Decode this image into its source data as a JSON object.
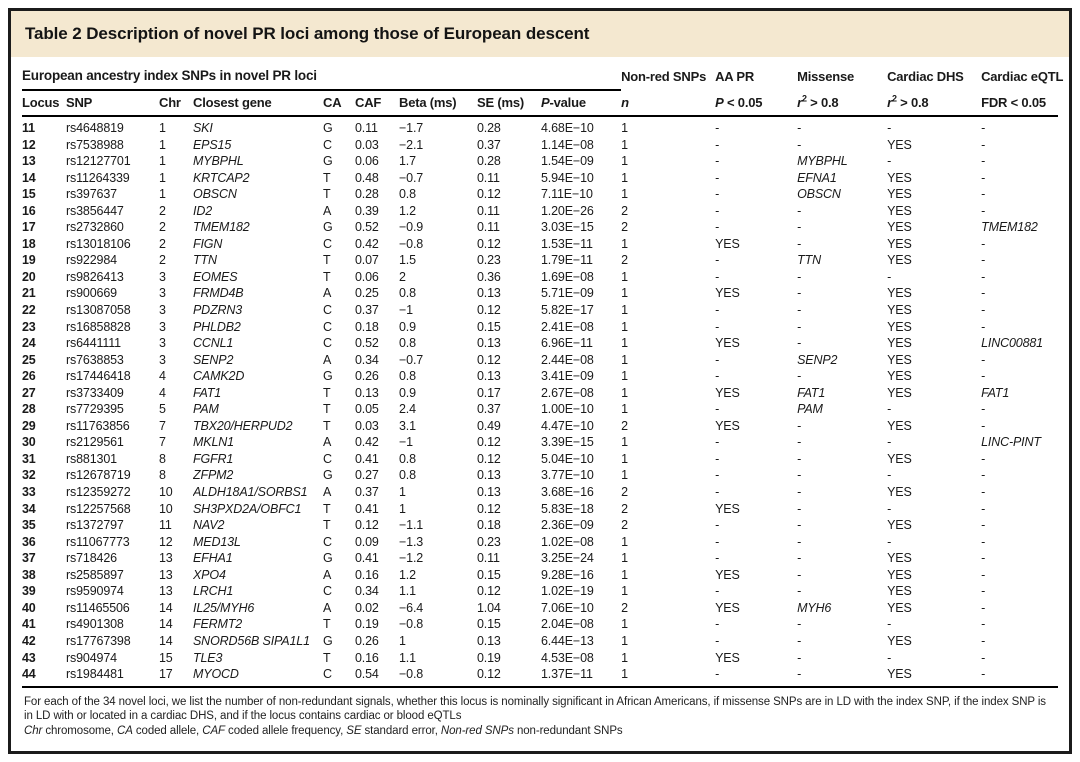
{
  "title": "Table 2 Description of novel PR loci among those of European descent",
  "section": {
    "left_group_header": "European ancestry index SNPs in novel PR loci"
  },
  "table": {
    "groups": [
      "Non-red SNPs",
      "AA PR",
      "Missense",
      "Cardiac DHS",
      "Cardiac eQTL"
    ],
    "columns": [
      {
        "id": "locus",
        "label": "Locus"
      },
      {
        "id": "snp",
        "label": "SNP"
      },
      {
        "id": "chr",
        "label": "Chr"
      },
      {
        "id": "gene",
        "label": "Closest gene"
      },
      {
        "id": "ca",
        "label": "CA"
      },
      {
        "id": "caf",
        "label": "CAF"
      },
      {
        "id": "beta",
        "label": "Beta (ms)"
      },
      {
        "id": "se",
        "label": "SE (ms)"
      },
      {
        "id": "pvalue",
        "label": "P-value"
      },
      {
        "id": "n",
        "label": "n"
      },
      {
        "id": "aapr",
        "label": "P < 0.05"
      },
      {
        "id": "missense",
        "label": "r2 > 0.8"
      },
      {
        "id": "dhs",
        "label": "r2 > 0.8"
      },
      {
        "id": "eqtl",
        "label": "FDR < 0.05"
      }
    ],
    "rows": [
      [
        "11",
        "rs4648819",
        "1",
        "SKI",
        "G",
        "0.11",
        "−1.7",
        "0.28",
        "4.68E−10",
        "1",
        "-",
        "-",
        "-",
        "-"
      ],
      [
        "12",
        "rs7538988",
        "1",
        "EPS15",
        "C",
        "0.03",
        "−2.1",
        "0.37",
        "1.14E−08",
        "1",
        "-",
        "-",
        "YES",
        "-"
      ],
      [
        "13",
        "rs12127701",
        "1",
        "MYBPHL",
        "G",
        "0.06",
        "1.7",
        "0.28",
        "1.54E−09",
        "1",
        "-",
        "MYBPHL",
        "-",
        "-"
      ],
      [
        "14",
        "rs11264339",
        "1",
        "KRTCAP2",
        "T",
        "0.48",
        "−0.7",
        "0.11",
        "5.94E−10",
        "1",
        "-",
        "EFNA1",
        "YES",
        "-"
      ],
      [
        "15",
        "rs397637",
        "1",
        "OBSCN",
        "T",
        "0.28",
        "0.8",
        "0.12",
        "7.11E−10",
        "1",
        "-",
        "OBSCN",
        "YES",
        "-"
      ],
      [
        "16",
        "rs3856447",
        "2",
        "ID2",
        "A",
        "0.39",
        "1.2",
        "0.11",
        "1.20E−26",
        "2",
        "-",
        "-",
        "YES",
        "-"
      ],
      [
        "17",
        "rs2732860",
        "2",
        "TMEM182",
        "G",
        "0.52",
        "−0.9",
        "0.11",
        "3.03E−15",
        "2",
        "-",
        "-",
        "YES",
        "TMEM182"
      ],
      [
        "18",
        "rs13018106",
        "2",
        "FIGN",
        "C",
        "0.42",
        "−0.8",
        "0.12",
        "1.53E−11",
        "1",
        "YES",
        "-",
        "YES",
        "-"
      ],
      [
        "19",
        "rs922984",
        "2",
        "TTN",
        "T",
        "0.07",
        "1.5",
        "0.23",
        "1.79E−11",
        "2",
        "-",
        "TTN",
        "YES",
        "-"
      ],
      [
        "20",
        "rs9826413",
        "3",
        "EOMES",
        "T",
        "0.06",
        "2",
        "0.36",
        "1.69E−08",
        "1",
        "-",
        "-",
        "-",
        "-"
      ],
      [
        "21",
        "rs900669",
        "3",
        "FRMD4B",
        "A",
        "0.25",
        "0.8",
        "0.13",
        "5.71E−09",
        "1",
        "YES",
        "-",
        "YES",
        "-"
      ],
      [
        "22",
        "rs13087058",
        "3",
        "PDZRN3",
        "C",
        "0.37",
        "−1",
        "0.12",
        "5.82E−17",
        "1",
        "-",
        "-",
        "YES",
        "-"
      ],
      [
        "23",
        "rs16858828",
        "3",
        "PHLDB2",
        "C",
        "0.18",
        "0.9",
        "0.15",
        "2.41E−08",
        "1",
        "-",
        "-",
        "YES",
        "-"
      ],
      [
        "24",
        "rs6441111",
        "3",
        "CCNL1",
        "C",
        "0.52",
        "0.8",
        "0.13",
        "6.96E−11",
        "1",
        "YES",
        "-",
        "YES",
        "LINC00881"
      ],
      [
        "25",
        "rs7638853",
        "3",
        "SENP2",
        "A",
        "0.34",
        "−0.7",
        "0.12",
        "2.44E−08",
        "1",
        "-",
        "SENP2",
        "YES",
        "-"
      ],
      [
        "26",
        "rs17446418",
        "4",
        "CAMK2D",
        "G",
        "0.26",
        "0.8",
        "0.13",
        "3.41E−09",
        "1",
        "-",
        "-",
        "YES",
        "-"
      ],
      [
        "27",
        "rs3733409",
        "4",
        "FAT1",
        "T",
        "0.13",
        "0.9",
        "0.17",
        "2.67E−08",
        "1",
        "YES",
        "FAT1",
        "YES",
        "FAT1"
      ],
      [
        "28",
        "rs7729395",
        "5",
        "PAM",
        "T",
        "0.05",
        "2.4",
        "0.37",
        "1.00E−10",
        "1",
        "-",
        "PAM",
        "-",
        "-"
      ],
      [
        "29",
        "rs11763856",
        "7",
        "TBX20/HERPUD2",
        "T",
        "0.03",
        "3.1",
        "0.49",
        "4.47E−10",
        "2",
        "YES",
        "-",
        "YES",
        "-"
      ],
      [
        "30",
        "rs2129561",
        "7",
        "MKLN1",
        "A",
        "0.42",
        "−1",
        "0.12",
        "3.39E−15",
        "1",
        "-",
        "-",
        "-",
        "LINC-PINT"
      ],
      [
        "31",
        "rs881301",
        "8",
        "FGFR1",
        "C",
        "0.41",
        "0.8",
        "0.12",
        "5.04E−10",
        "1",
        "-",
        "-",
        "YES",
        "-"
      ],
      [
        "32",
        "rs12678719",
        "8",
        "ZFPM2",
        "G",
        "0.27",
        "0.8",
        "0.13",
        "3.77E−10",
        "1",
        "-",
        "-",
        "-",
        "-"
      ],
      [
        "33",
        "rs12359272",
        "10",
        "ALDH18A1/SORBS1",
        "A",
        "0.37",
        "1",
        "0.13",
        "3.68E−16",
        "2",
        "-",
        "-",
        "YES",
        "-"
      ],
      [
        "34",
        "rs12257568",
        "10",
        "SH3PXD2A/OBFC1",
        "T",
        "0.41",
        "1",
        "0.12",
        "5.83E−18",
        "2",
        "YES",
        "-",
        "-",
        "-"
      ],
      [
        "35",
        "rs1372797",
        "11",
        "NAV2",
        "T",
        "0.12",
        "−1.1",
        "0.18",
        "2.36E−09",
        "2",
        "-",
        "-",
        "YES",
        "-"
      ],
      [
        "36",
        "rs11067773",
        "12",
        "MED13L",
        "C",
        "0.09",
        "−1.3",
        "0.23",
        "1.02E−08",
        "1",
        "-",
        "-",
        "-",
        "-"
      ],
      [
        "37",
        "rs718426",
        "13",
        "EFHA1",
        "G",
        "0.41",
        "−1.2",
        "0.11",
        "3.25E−24",
        "1",
        "-",
        "-",
        "YES",
        "-"
      ],
      [
        "38",
        "rs2585897",
        "13",
        "XPO4",
        "A",
        "0.16",
        "1.2",
        "0.15",
        "9.28E−16",
        "1",
        "YES",
        "-",
        "YES",
        "-"
      ],
      [
        "39",
        "rs9590974",
        "13",
        "LRCH1",
        "C",
        "0.34",
        "1.1",
        "0.12",
        "1.02E−19",
        "1",
        "-",
        "-",
        "YES",
        "-"
      ],
      [
        "40",
        "rs11465506",
        "14",
        "IL25/MYH6",
        "A",
        "0.02",
        "−6.4",
        "1.04",
        "7.06E−10",
        "2",
        "YES",
        "MYH6",
        "YES",
        "-"
      ],
      [
        "41",
        "rs4901308",
        "14",
        "FERMT2",
        "T",
        "0.19",
        "−0.8",
        "0.15",
        "2.04E−08",
        "1",
        "-",
        "-",
        "-",
        "-"
      ],
      [
        "42",
        "rs17767398",
        "14",
        "SNORD56B SIPA1L1",
        "G",
        "0.26",
        "1",
        "0.13",
        "6.44E−13",
        "1",
        "-",
        "-",
        "YES",
        "-"
      ],
      [
        "43",
        "rs904974",
        "15",
        "TLE3",
        "T",
        "0.16",
        "1.1",
        "0.19",
        "4.53E−08",
        "1",
        "YES",
        "-",
        "-",
        "-"
      ],
      [
        "44",
        "rs1984481",
        "17",
        "MYOCD",
        "C",
        "0.54",
        "−0.8",
        "0.12",
        "1.37E−11",
        "1",
        "-",
        "-",
        "YES",
        "-"
      ]
    ]
  },
  "footnotes": {
    "description": "For each of the 34 novel loci, we list the number of non-redundant signals, whether this locus is nominally significant in African Americans, if missense SNPs are in LD with the index SNP, if the index SNP is in LD with or located in a cardiac DHS, and if the locus contains cardiac or blood eQTLs",
    "abbreviations": [
      {
        "t": "Chr",
        "i": true
      },
      {
        "t": " chromosome, "
      },
      {
        "t": "CA",
        "i": true
      },
      {
        "t": " coded allele, "
      },
      {
        "t": "CAF",
        "i": true
      },
      {
        "t": " coded allele frequency, "
      },
      {
        "t": "SE",
        "i": true
      },
      {
        "t": " standard error, "
      },
      {
        "t": "Non-red SNPs",
        "i": true
      },
      {
        "t": " non-redundant SNPs"
      }
    ],
    "colors": {
      "title_band_bg": "#f4e8d0",
      "rule": "#000000",
      "text": "#1a1a1a"
    }
  }
}
